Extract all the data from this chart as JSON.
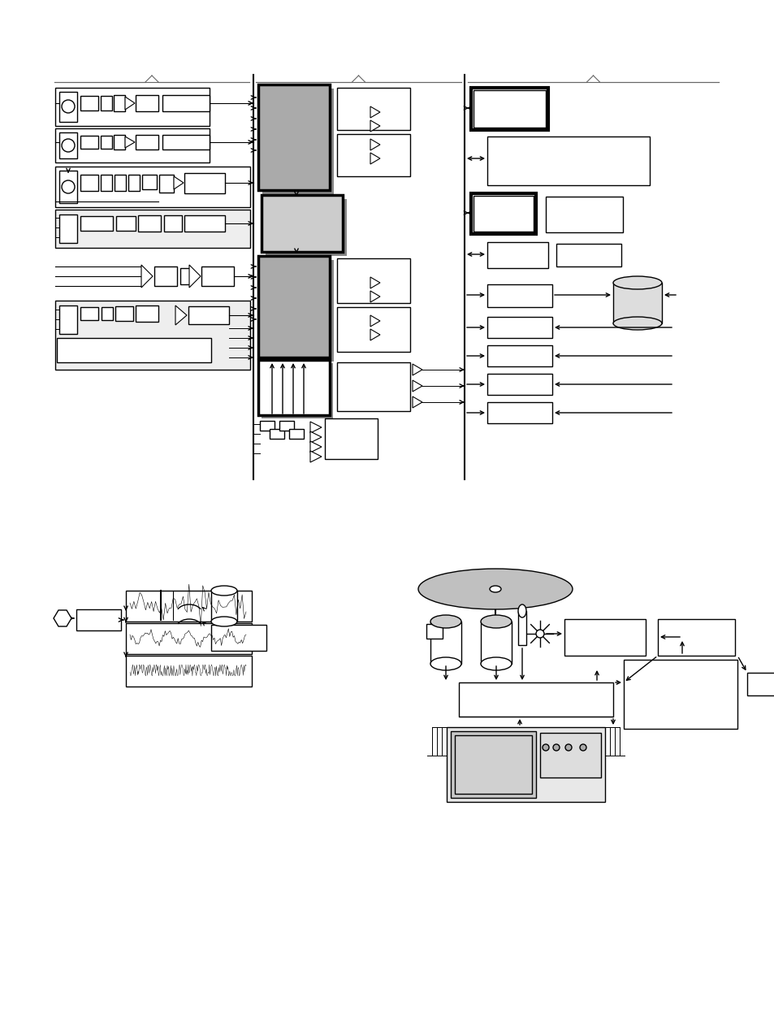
{
  "bg_color": "#ffffff",
  "fig_width": 9.54,
  "fig_height": 12.69,
  "dpi": 100
}
